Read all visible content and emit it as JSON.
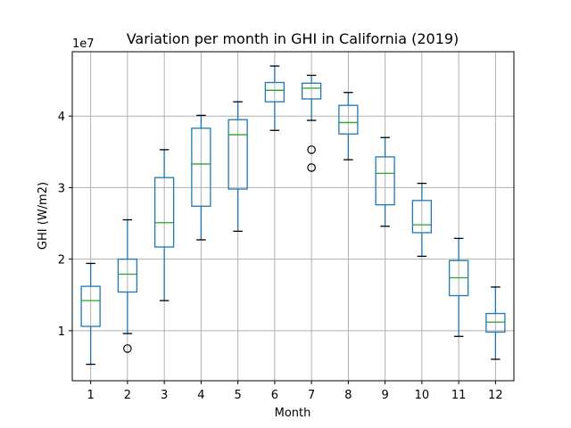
{
  "chart_data": {
    "type": "box",
    "title": "Variation per month in GHI in California (2019)",
    "xlabel": "Month",
    "ylabel": "GHI (W/m2)",
    "y_offset_text": "1e7",
    "y_unit_multiplier": 10000000,
    "ylim": [
      0.3,
      4.9
    ],
    "yticks": [
      1,
      2,
      3,
      4
    ],
    "grid": true,
    "categories": [
      "1",
      "2",
      "3",
      "4",
      "5",
      "6",
      "7",
      "8",
      "9",
      "10",
      "11",
      "12"
    ],
    "boxes": [
      {
        "month": "1",
        "whislo": 0.53,
        "q1": 1.06,
        "med": 1.42,
        "q3": 1.62,
        "whishi": 1.94,
        "fliers": []
      },
      {
        "month": "2",
        "whislo": 0.96,
        "q1": 1.54,
        "med": 1.79,
        "q3": 2.0,
        "whishi": 2.55,
        "fliers": [
          0.75
        ]
      },
      {
        "month": "3",
        "whislo": 1.42,
        "q1": 2.17,
        "med": 2.51,
        "q3": 3.14,
        "whishi": 3.53,
        "fliers": []
      },
      {
        "month": "4",
        "whislo": 2.27,
        "q1": 2.74,
        "med": 3.33,
        "q3": 3.83,
        "whishi": 4.01,
        "fliers": []
      },
      {
        "month": "5",
        "whislo": 2.39,
        "q1": 2.98,
        "med": 3.74,
        "q3": 3.95,
        "whishi": 4.2,
        "fliers": []
      },
      {
        "month": "6",
        "whislo": 3.8,
        "q1": 4.2,
        "med": 4.36,
        "q3": 4.47,
        "whishi": 4.7,
        "fliers": []
      },
      {
        "month": "7",
        "whislo": 3.94,
        "q1": 4.24,
        "med": 4.39,
        "q3": 4.46,
        "whishi": 4.57,
        "fliers": [
          3.53,
          3.28
        ]
      },
      {
        "month": "8",
        "whislo": 3.39,
        "q1": 3.75,
        "med": 3.91,
        "q3": 4.15,
        "whishi": 4.33,
        "fliers": []
      },
      {
        "month": "9",
        "whislo": 2.46,
        "q1": 2.76,
        "med": 3.2,
        "q3": 3.43,
        "whishi": 3.7,
        "fliers": []
      },
      {
        "month": "10",
        "whislo": 2.04,
        "q1": 2.37,
        "med": 2.48,
        "q3": 2.82,
        "whishi": 3.06,
        "fliers": []
      },
      {
        "month": "11",
        "whislo": 0.92,
        "q1": 1.49,
        "med": 1.74,
        "q3": 1.98,
        "whishi": 2.29,
        "fliers": []
      },
      {
        "month": "12",
        "whislo": 0.6,
        "q1": 0.98,
        "med": 1.12,
        "q3": 1.24,
        "whishi": 1.61,
        "fliers": []
      }
    ]
  }
}
